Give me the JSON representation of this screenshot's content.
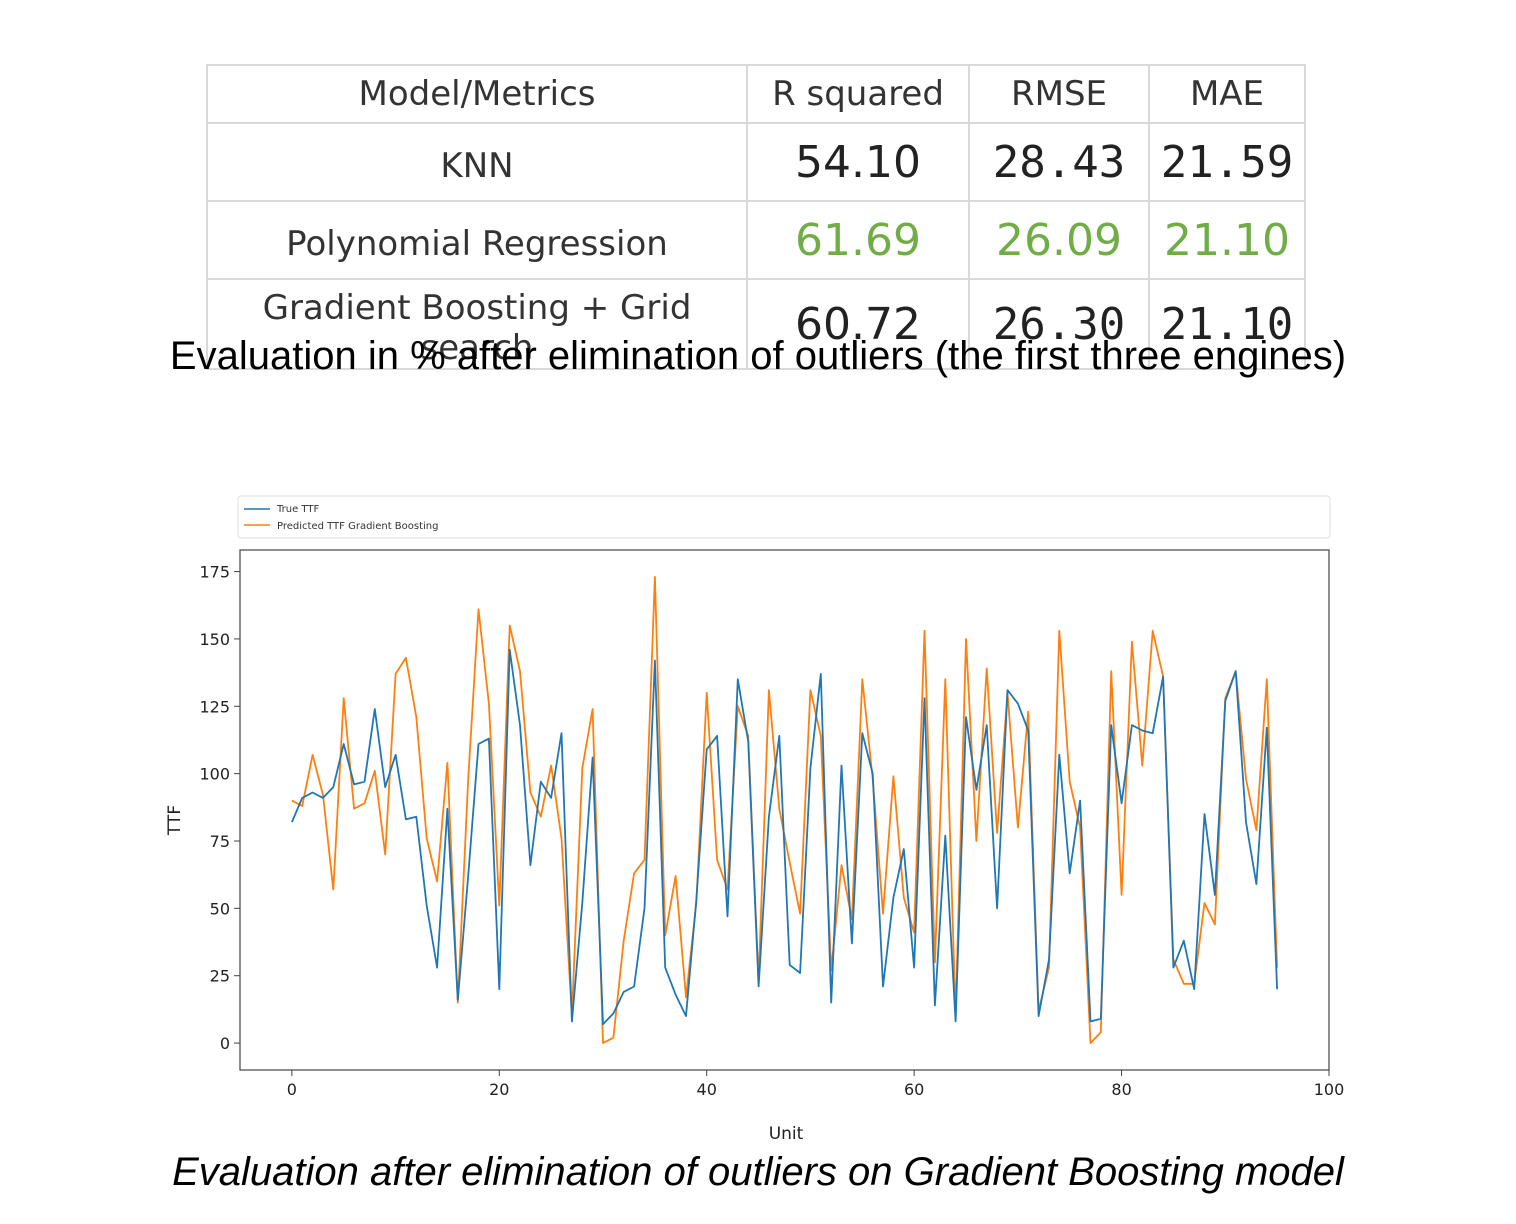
{
  "table": {
    "headers": [
      "Model/Metrics",
      "R squared",
      "RMSE",
      "MAE"
    ],
    "rows": [
      {
        "model": "KNN",
        "r2": "54.10",
        "rmse": "28.43",
        "mae": "21.59"
      },
      {
        "model": "Polynomial Regression",
        "r2": "61.69",
        "rmse": "26.09",
        "mae": "21.10"
      },
      {
        "model": "Gradient Boosting + Grid search",
        "r2": "60.72",
        "rmse": "26.30",
        "mae": "21.10"
      }
    ],
    "best_color": "#70ad47"
  },
  "caption_top": "Evaluation in % after elimination of outliers (the first three engines)",
  "caption_bottom": "Evaluation after elimination of outliers on Gradient Boosting model",
  "chart_data": {
    "type": "line",
    "xlabel": "Unit",
    "ylabel": "TTF",
    "xlim": [
      -5,
      100
    ],
    "ylim": [
      -10,
      183
    ],
    "x_ticks": [
      0,
      20,
      40,
      60,
      80,
      100
    ],
    "y_ticks": [
      0,
      25,
      50,
      75,
      100,
      125,
      150,
      175
    ],
    "grid": false,
    "legend_position": "top",
    "series": [
      {
        "name": "True TTF",
        "color": "#1f77b4",
        "values": [
          82,
          91,
          93,
          91,
          95,
          111,
          96,
          97,
          124,
          95,
          107,
          83,
          84,
          51,
          28,
          87,
          16,
          62,
          111,
          113,
          20,
          146,
          118,
          66,
          97,
          91,
          115,
          8,
          52,
          106,
          7,
          11,
          19,
          21,
          50,
          142,
          28,
          18,
          10,
          53,
          109,
          114,
          47,
          135,
          112,
          21,
          84,
          114,
          29,
          26,
          102,
          137,
          15,
          103,
          37,
          115,
          100,
          21,
          54,
          72,
          28,
          128,
          14,
          77,
          8,
          121,
          94,
          118,
          50,
          131,
          126,
          116,
          10,
          31,
          107,
          63,
          90,
          8,
          9,
          118,
          89,
          118,
          116,
          115,
          136,
          28,
          38,
          20,
          85,
          55,
          127,
          138,
          82,
          59,
          117,
          20
        ]
      },
      {
        "name": "Predicted TTF Gradient Boosting",
        "color": "#ff7f0e",
        "values": [
          90,
          88,
          107,
          92,
          57,
          128,
          87,
          89,
          101,
          70,
          137,
          143,
          121,
          76,
          60,
          104,
          15,
          98,
          161,
          126,
          51,
          155,
          138,
          93,
          84,
          103,
          76,
          10,
          102,
          124,
          0,
          2,
          38,
          63,
          68,
          173,
          40,
          62,
          17,
          52,
          130,
          68,
          57,
          125,
          114,
          23,
          131,
          87,
          67,
          48,
          131,
          114,
          27,
          66,
          46,
          135,
          98,
          48,
          99,
          54,
          41,
          153,
          30,
          135,
          10,
          150,
          75,
          139,
          78,
          130,
          80,
          123,
          12,
          28,
          153,
          97,
          80,
          0,
          4,
          138,
          55,
          149,
          103,
          153,
          136,
          31,
          22,
          22,
          52,
          44,
          128,
          138,
          98,
          79,
          135,
          28
        ]
      }
    ]
  }
}
